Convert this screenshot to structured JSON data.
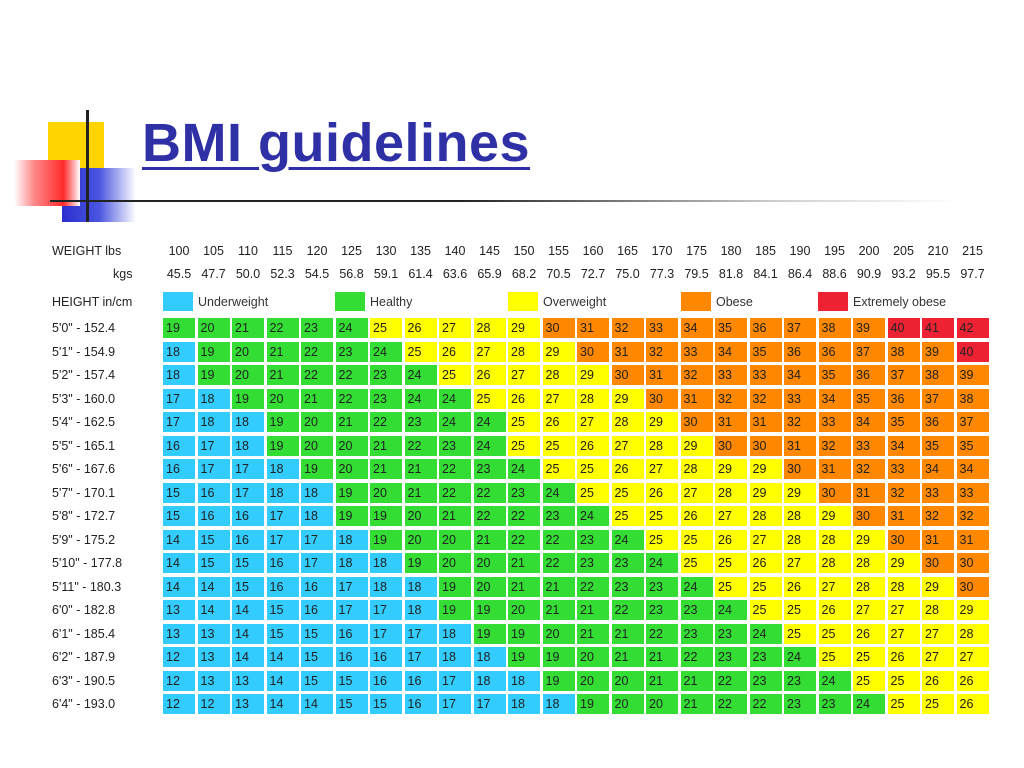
{
  "slide": {
    "title": "BMI guidelines"
  },
  "table": {
    "weight_label": "WEIGHT lbs",
    "kgs_label": "kgs",
    "height_label": "HEIGHT in/cm",
    "weights_lbs": [
      "100",
      "105",
      "110",
      "115",
      "120",
      "125",
      "130",
      "135",
      "140",
      "145",
      "150",
      "155",
      "160",
      "165",
      "170",
      "175",
      "180",
      "185",
      "190",
      "195",
      "200",
      "205",
      "210",
      "215"
    ],
    "weights_kgs": [
      "45.5",
      "47.7",
      "50.0",
      "52.3",
      "54.5",
      "56.8",
      "59.1",
      "61.4",
      "63.6",
      "65.9",
      "68.2",
      "70.5",
      "72.7",
      "75.0",
      "77.3",
      "79.5",
      "81.8",
      "84.1",
      "86.4",
      "88.6",
      "90.9",
      "93.2",
      "95.5",
      "97.7"
    ],
    "legend": [
      {
        "label": "Underweight",
        "color": "#33ccff"
      },
      {
        "label": "Healthy",
        "color": "#33dd33"
      },
      {
        "label": "Overweight",
        "color": "#ffff00"
      },
      {
        "label": "Obese",
        "color": "#ff8800"
      },
      {
        "label": "Extremely obese",
        "color": "#ee2233"
      }
    ],
    "heights": [
      "5'0\"  -  152.4",
      "5'1\"  -  154.9",
      "5'2\"  -  157.4",
      "5'3\"  -  160.0",
      "5'4\"  -  162.5",
      "5'5\"  -  165.1",
      "5'6\"  -  167.6",
      "5'7\"  -  170.1",
      "5'8\"  -  172.7",
      "5'9\"  -  175.2",
      "5'10\" - 177.8",
      "5'11\" - 180.3",
      "6'0\"  -  182.8",
      "6'1\"  -  185.4",
      "6'2\"  -  187.9",
      "6'3\"  -  190.5",
      "6'4\"  -  193.0"
    ],
    "rows": [
      [
        19,
        20,
        21,
        22,
        23,
        24,
        25,
        26,
        27,
        28,
        29,
        30,
        31,
        32,
        33,
        34,
        35,
        36,
        37,
        38,
        39,
        40,
        41,
        42
      ],
      [
        18,
        19,
        20,
        21,
        22,
        23,
        24,
        25,
        26,
        27,
        28,
        29,
        30,
        31,
        32,
        33,
        34,
        35,
        36,
        36,
        37,
        38,
        39,
        40
      ],
      [
        18,
        19,
        20,
        21,
        22,
        22,
        23,
        24,
        25,
        26,
        27,
        28,
        29,
        30,
        31,
        32,
        33,
        33,
        34,
        35,
        36,
        37,
        38,
        39
      ],
      [
        17,
        18,
        19,
        20,
        21,
        22,
        23,
        24,
        24,
        25,
        26,
        27,
        28,
        29,
        30,
        31,
        32,
        32,
        33,
        34,
        35,
        36,
        37,
        38
      ],
      [
        17,
        18,
        18,
        19,
        20,
        21,
        22,
        23,
        24,
        24,
        25,
        26,
        27,
        28,
        29,
        30,
        31,
        31,
        32,
        33,
        34,
        35,
        36,
        37
      ],
      [
        16,
        17,
        18,
        19,
        20,
        20,
        21,
        22,
        23,
        24,
        25,
        25,
        26,
        27,
        28,
        29,
        30,
        30,
        31,
        32,
        33,
        34,
        35,
        35
      ],
      [
        16,
        17,
        17,
        18,
        19,
        20,
        21,
        21,
        22,
        23,
        24,
        25,
        25,
        26,
        27,
        28,
        29,
        29,
        30,
        31,
        32,
        33,
        34,
        34
      ],
      [
        15,
        16,
        17,
        18,
        18,
        19,
        20,
        21,
        22,
        22,
        23,
        24,
        25,
        25,
        26,
        27,
        28,
        29,
        29,
        30,
        31,
        32,
        33,
        33
      ],
      [
        15,
        16,
        16,
        17,
        18,
        19,
        19,
        20,
        21,
        22,
        22,
        23,
        24,
        25,
        25,
        26,
        27,
        28,
        28,
        29,
        30,
        31,
        32,
        32
      ],
      [
        14,
        15,
        16,
        17,
        17,
        18,
        19,
        20,
        20,
        21,
        22,
        22,
        23,
        24,
        25,
        25,
        26,
        27,
        28,
        28,
        29,
        30,
        31,
        31
      ],
      [
        14,
        15,
        15,
        16,
        17,
        18,
        18,
        19,
        20,
        20,
        21,
        22,
        23,
        23,
        24,
        25,
        25,
        26,
        27,
        28,
        28,
        29,
        30,
        30
      ],
      [
        14,
        14,
        15,
        16,
        16,
        17,
        18,
        18,
        19,
        20,
        21,
        21,
        22,
        23,
        23,
        24,
        25,
        25,
        26,
        27,
        28,
        28,
        29,
        30
      ],
      [
        13,
        14,
        14,
        15,
        16,
        17,
        17,
        18,
        19,
        19,
        20,
        21,
        21,
        22,
        23,
        23,
        24,
        25,
        25,
        26,
        27,
        27,
        28,
        29
      ],
      [
        13,
        13,
        14,
        15,
        15,
        16,
        17,
        17,
        18,
        19,
        19,
        20,
        21,
        21,
        22,
        23,
        23,
        24,
        25,
        25,
        26,
        27,
        27,
        28
      ],
      [
        12,
        13,
        14,
        14,
        15,
        16,
        16,
        17,
        18,
        18,
        19,
        19,
        20,
        21,
        21,
        22,
        23,
        23,
        24,
        25,
        25,
        26,
        27,
        27
      ],
      [
        12,
        13,
        13,
        14,
        15,
        15,
        16,
        16,
        17,
        18,
        18,
        19,
        20,
        20,
        21,
        21,
        22,
        23,
        23,
        24,
        25,
        25,
        26,
        26
      ],
      [
        12,
        12,
        13,
        14,
        14,
        15,
        15,
        16,
        17,
        17,
        18,
        18,
        19,
        20,
        20,
        21,
        22,
        22,
        23,
        23,
        24,
        25,
        25,
        26
      ]
    ],
    "category_ranges": {
      "underweight_max": 18,
      "healthy_max": 24,
      "overweight_max": 29,
      "obese_max": 39
    }
  }
}
